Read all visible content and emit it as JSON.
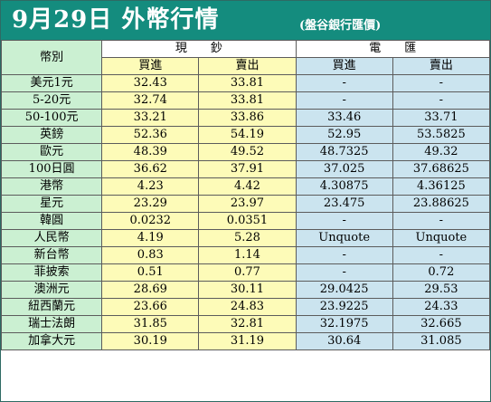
{
  "header": {
    "title": "9月29日 外幣行情",
    "source_note": "(盤谷銀行匯價)"
  },
  "columns": {
    "currency": "幣別",
    "cash_group": "現　　鈔",
    "telegraphic_group": "電　　匯",
    "buy": "買進",
    "sell": "賣出"
  },
  "rows": [
    {
      "name": "美元1元",
      "cash_buy": "32.43",
      "cash_sell": "33.81",
      "tt_buy": "-",
      "tt_sell": "-"
    },
    {
      "name": "5-20元",
      "cash_buy": "32.74",
      "cash_sell": "33.81",
      "tt_buy": "-",
      "tt_sell": "-"
    },
    {
      "name": "50-100元",
      "cash_buy": "33.21",
      "cash_sell": "33.86",
      "tt_buy": "33.46",
      "tt_sell": "33.71"
    },
    {
      "name": "英鎊",
      "cash_buy": "52.36",
      "cash_sell": "54.19",
      "tt_buy": "52.95",
      "tt_sell": "53.5825"
    },
    {
      "name": "歐元",
      "cash_buy": "48.39",
      "cash_sell": "49.52",
      "tt_buy": "48.7325",
      "tt_sell": "49.32"
    },
    {
      "name": "100日圓",
      "cash_buy": "36.62",
      "cash_sell": "37.91",
      "tt_buy": "37.025",
      "tt_sell": "37.68625"
    },
    {
      "name": "港幣",
      "cash_buy": "4.23",
      "cash_sell": "4.42",
      "tt_buy": "4.30875",
      "tt_sell": "4.36125"
    },
    {
      "name": "星元",
      "cash_buy": "23.29",
      "cash_sell": "23.97",
      "tt_buy": "23.475",
      "tt_sell": "23.88625"
    },
    {
      "name": "韓圓",
      "cash_buy": "0.0232",
      "cash_sell": "0.0351",
      "tt_buy": "-",
      "tt_sell": "-"
    },
    {
      "name": "人民幣",
      "cash_buy": "4.19",
      "cash_sell": "5.28",
      "tt_buy": "Unquote",
      "tt_sell": "Unquote"
    },
    {
      "name": "新台幣",
      "cash_buy": "0.83",
      "cash_sell": "1.14",
      "tt_buy": "-",
      "tt_sell": "-"
    },
    {
      "name": "菲披索",
      "cash_buy": "0.51",
      "cash_sell": "0.77",
      "tt_buy": "-",
      "tt_sell": "0.72"
    },
    {
      "name": "澳洲元",
      "cash_buy": "28.69",
      "cash_sell": "30.11",
      "tt_buy": "29.0425",
      "tt_sell": "29.53"
    },
    {
      "name": "紐西蘭元",
      "cash_buy": "23.66",
      "cash_sell": "24.83",
      "tt_buy": "23.9225",
      "tt_sell": "24.33"
    },
    {
      "name": "瑞士法朗",
      "cash_buy": "31.85",
      "cash_sell": "32.81",
      "tt_buy": "32.1975",
      "tt_sell": "32.665"
    },
    {
      "name": "加拿大元",
      "cash_buy": "30.19",
      "cash_sell": "31.19",
      "tt_buy": "30.64",
      "tt_sell": "31.085"
    }
  ],
  "colors": {
    "banner": "#148c7e",
    "label_cells": "#cbf0d2",
    "cash_cells": "#fdfbb8",
    "telegraphic_cells": "#cbe4ef",
    "grid_lines": "#5c5c5c"
  }
}
